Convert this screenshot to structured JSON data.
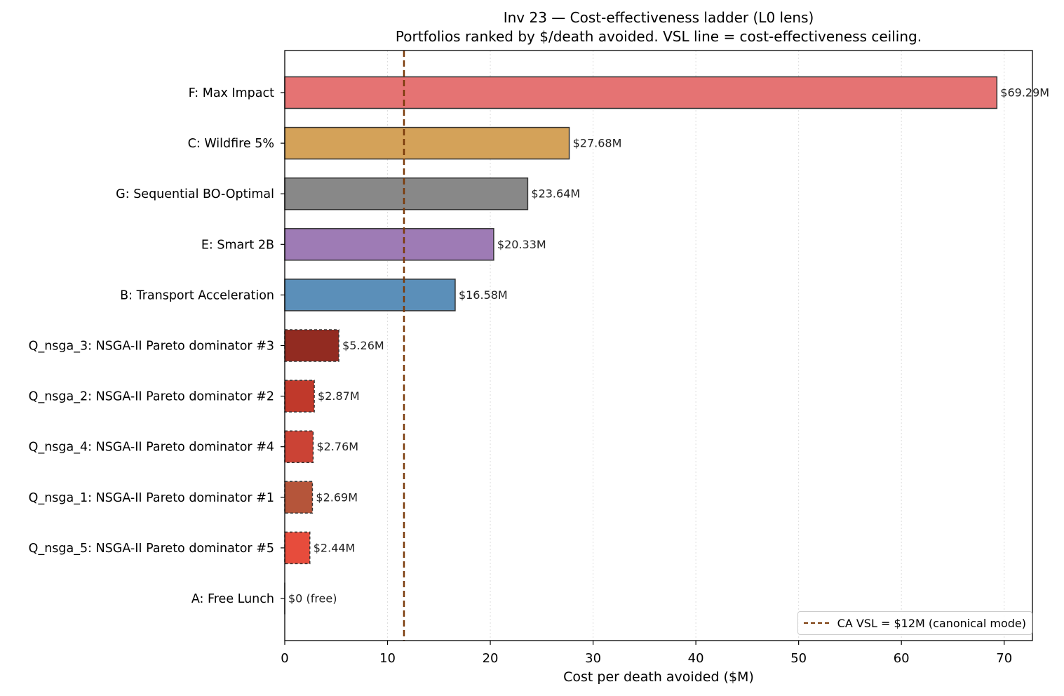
{
  "chart_data": {
    "type": "bar",
    "orientation": "horizontal",
    "title": "Inv 23 — Cost-effectiveness ladder (L0 lens)",
    "subtitle": "Portfolios ranked by $/death avoided. VSL line = cost-effectiveness ceiling.",
    "xlabel": "Cost per death avoided ($M)",
    "ylabel": "",
    "xlim": [
      0,
      72.75
    ],
    "xticks": [
      0,
      10,
      20,
      30,
      40,
      50,
      60,
      70
    ],
    "grid": "x, dotted",
    "categories": [
      "F: Max Impact",
      "C: Wildfire 5%",
      "G: Sequential BO-Optimal",
      "E: Smart 2B",
      "B: Transport Acceleration",
      "Q_nsga_3: NSGA-II Pareto dominator #3",
      "Q_nsga_2: NSGA-II Pareto dominator #2",
      "Q_nsga_4: NSGA-II Pareto dominator #4",
      "Q_nsga_1: NSGA-II Pareto dominator #1",
      "Q_nsga_5: NSGA-II Pareto dominator #5",
      "A: Free Lunch"
    ],
    "values": [
      69.29,
      27.68,
      23.64,
      20.33,
      16.58,
      5.26,
      2.87,
      2.76,
      2.69,
      2.44,
      0
    ],
    "data_labels": [
      "$69.29M",
      "$27.68M",
      "$23.64M",
      "$20.33M",
      "$16.58M",
      "$5.26M",
      "$2.87M",
      "$2.76M",
      "$2.69M",
      "$2.44M",
      "$0 (free)"
    ],
    "bar_colors": [
      "#e57373",
      "#d4a259",
      "#888888",
      "#9e7bb5",
      "#5b8fb9",
      "#922b21",
      "#c0392b",
      "#cb4335",
      "#b5553a",
      "#e74c3c",
      "#333333"
    ],
    "dashed_border": [
      false,
      false,
      false,
      false,
      false,
      true,
      true,
      true,
      true,
      true,
      false
    ],
    "reference_line": {
      "value": 11.6,
      "color": "#7a3a0a",
      "style": "dashed",
      "label": "CA VSL = $12M (canonical mode)"
    },
    "legend_position": "lower right"
  }
}
